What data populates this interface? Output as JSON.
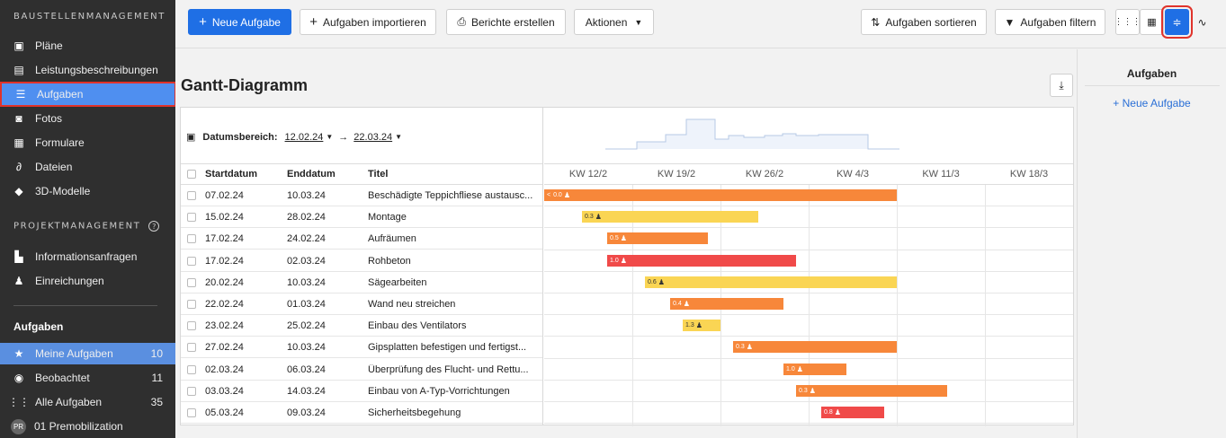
{
  "sidebar": {
    "section1_title": "BAUSTELLENMANAGEMENT",
    "section1_items": [
      {
        "label": "Pläne",
        "icon": "plans-icon"
      },
      {
        "label": "Leistungsbeschreibungen",
        "icon": "specs-icon"
      },
      {
        "label": "Aufgaben",
        "icon": "list-icon"
      },
      {
        "label": "Fotos",
        "icon": "camera-icon"
      },
      {
        "label": "Formulare",
        "icon": "clipboard-icon"
      },
      {
        "label": "Dateien",
        "icon": "paperclip-icon"
      },
      {
        "label": "3D-Modelle",
        "icon": "cube-icon"
      }
    ],
    "section2_title": "PROJEKTMANAGEMENT",
    "section2_items": [
      {
        "label": "Informationsanfragen",
        "icon": "rfi-icon"
      },
      {
        "label": "Einreichungen",
        "icon": "stamp-icon"
      }
    ],
    "tasks_heading": "Aufgaben",
    "task_filters": [
      {
        "label": "Meine Aufgaben",
        "count": "10",
        "icon": "star-icon"
      },
      {
        "label": "Beobachtet",
        "count": "11",
        "icon": "eye-icon"
      },
      {
        "label": "Alle Aufgaben",
        "count": "35",
        "icon": "grid-icon"
      },
      {
        "label": "01 Premobilization",
        "badge": "PR"
      }
    ]
  },
  "toolbar": {
    "new_task": "Neue Aufgabe",
    "import_tasks": "Aufgaben importieren",
    "create_reports": "Berichte erstellen",
    "actions": "Aktionen",
    "sort_tasks": "Aufgaben sortieren",
    "filter_tasks": "Aufgaben filtern"
  },
  "main": {
    "title": "Gantt-Diagramm",
    "date_range_label": "Datumsbereich:",
    "date_from": "12.02.24",
    "date_arrow": "→",
    "date_to": "22.03.24",
    "columns": {
      "start": "Startdatum",
      "end": "Enddatum",
      "title": "Titel"
    },
    "weeks": [
      "KW 12/2",
      "KW 19/2",
      "KW 26/2",
      "KW 4/3",
      "KW 11/3",
      "KW 18/3"
    ],
    "rows": [
      {
        "start": "07.02.24",
        "end": "10.03.24",
        "title": "Beschädigte Teppichfliese austausc...",
        "bar_label": "0.0",
        "color": "#f7873a",
        "from": 0.0,
        "to": 28.0,
        "clipped": true
      },
      {
        "start": "15.02.24",
        "end": "28.02.24",
        "title": "Montage",
        "bar_label": "0.3",
        "color": "#fad554",
        "from": 3.0,
        "to": 17.0
      },
      {
        "start": "17.02.24",
        "end": "24.02.24",
        "title": "Aufräumen",
        "bar_label": "0.5",
        "color": "#f7873a",
        "from": 5.0,
        "to": 13.0
      },
      {
        "start": "17.02.24",
        "end": "02.03.24",
        "title": "Rohbeton",
        "bar_label": "1.0",
        "color": "#f04a49",
        "from": 5.0,
        "to": 20.0
      },
      {
        "start": "20.02.24",
        "end": "10.03.24",
        "title": "Sägearbeiten",
        "bar_label": "0.6",
        "color": "#fad554",
        "from": 8.0,
        "to": 28.0
      },
      {
        "start": "22.02.24",
        "end": "01.03.24",
        "title": "Wand neu streichen",
        "bar_label": "0.4",
        "color": "#f7873a",
        "from": 10.0,
        "to": 19.0
      },
      {
        "start": "23.02.24",
        "end": "25.02.24",
        "title": "Einbau des Ventilators",
        "bar_label": "1.3",
        "color": "#fad554",
        "from": 11.0,
        "to": 14.0
      },
      {
        "start": "27.02.24",
        "end": "10.03.24",
        "title": "Gipsplatten befestigen und fertigst...",
        "bar_label": "0.3",
        "color": "#f7873a",
        "from": 15.0,
        "to": 28.0
      },
      {
        "start": "02.03.24",
        "end": "06.03.24",
        "title": "Überprüfung des Flucht- und Rettu...",
        "bar_label": "1.0",
        "color": "#f7873a",
        "from": 19.0,
        "to": 24.0
      },
      {
        "start": "03.03.24",
        "end": "14.03.24",
        "title": "Einbau von A-Typ-Vorrichtungen",
        "bar_label": "0.3",
        "color": "#f7873a",
        "from": 20.0,
        "to": 32.0
      },
      {
        "start": "05.03.24",
        "end": "09.03.24",
        "title": "Sicherheitsbegehung",
        "bar_label": "0.8",
        "color": "#f04a49",
        "from": 22.0,
        "to": 27.0
      }
    ]
  },
  "side_panel": {
    "title": "Aufgaben",
    "new_task": "+ Neue Aufgabe"
  },
  "colors": {
    "accent": "#1f6fe5",
    "active_nav": "#4f8ff0",
    "highlight_outline": "#e0332b",
    "bar_orange": "#f7873a",
    "bar_yellow": "#fad554",
    "bar_red": "#f04a49"
  }
}
